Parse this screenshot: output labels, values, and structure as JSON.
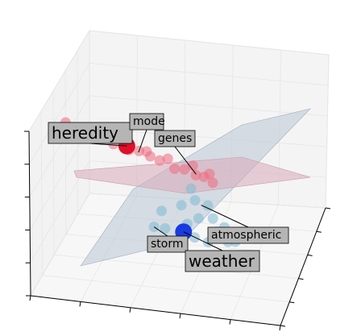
{
  "chart_data": {
    "type": "scatter",
    "projection": "3d",
    "grid": true,
    "tick_labels_shown": false,
    "title": "",
    "xlabel": "",
    "ylabel": "",
    "zlabel": "",
    "planes": [
      {
        "name": "",
        "color": "#b9c7d3"
      },
      {
        "name": "",
        "color": "#d9a9b9"
      }
    ],
    "series": [
      {
        "name": "",
        "color": "#ee6a7d",
        "points": [
          [
            -0.95,
            0.0,
            0.52
          ],
          [
            -0.8,
            0.02,
            0.5
          ],
          [
            -0.7,
            -0.02,
            0.48
          ],
          [
            -0.55,
            0.04,
            0.5
          ],
          [
            -0.48,
            -0.03,
            0.47
          ],
          [
            -0.42,
            0.05,
            0.51
          ],
          [
            -0.35,
            0.0,
            0.49
          ],
          [
            -0.3,
            -0.05,
            0.46
          ],
          [
            -0.25,
            0.04,
            0.52
          ],
          [
            -0.18,
            0.01,
            0.47
          ],
          [
            -0.12,
            -0.02,
            0.5
          ],
          [
            -0.05,
            0.05,
            0.48
          ],
          [
            0.02,
            0.0,
            0.45
          ],
          [
            0.08,
            -0.04,
            0.5
          ],
          [
            0.12,
            0.03,
            0.47
          ],
          [
            0.18,
            0.0,
            0.44
          ],
          [
            0.22,
            -0.02,
            0.49
          ],
          [
            0.26,
            0.04,
            0.46
          ]
        ]
      },
      {
        "name": "",
        "color": "#7fbad3",
        "points": [
          [
            0.1,
            0.12,
            0.35
          ],
          [
            0.15,
            0.2,
            0.3
          ],
          [
            0.05,
            0.25,
            0.2
          ],
          [
            0.2,
            0.3,
            0.15
          ],
          [
            0.25,
            0.18,
            0.25
          ],
          [
            0.3,
            0.22,
            0.1
          ],
          [
            0.12,
            0.35,
            0.05
          ],
          [
            0.35,
            0.3,
            0.0
          ],
          [
            0.4,
            0.25,
            0.05
          ],
          [
            0.45,
            0.35,
            -0.05
          ],
          [
            0.5,
            0.3,
            -0.1
          ],
          [
            -0.1,
            0.3,
            0.05
          ],
          [
            -0.05,
            0.4,
            -0.1
          ],
          [
            -0.15,
            0.35,
            -0.2
          ],
          [
            0.0,
            0.45,
            -0.25
          ],
          [
            0.3,
            0.4,
            -0.1
          ],
          [
            0.2,
            0.45,
            0.0
          ]
        ]
      }
    ],
    "highlighted": [
      {
        "word": "heredity",
        "point": [
          -0.45,
          0.0,
          0.5
        ],
        "color": "#e0102a"
      },
      {
        "word": "weather",
        "point": [
          0.1,
          0.4,
          -0.05
        ],
        "color": "#1a3ae0"
      }
    ],
    "annotations": [
      {
        "text": "heredity",
        "target": "heredity",
        "size": "large"
      },
      {
        "text": "mode",
        "target": [
          -0.35,
          0.02,
          0.49
        ],
        "size": "small"
      },
      {
        "text": "genes",
        "target": [
          0.12,
          0.02,
          0.47
        ],
        "size": "small"
      },
      {
        "text": "storm",
        "target": [
          -0.15,
          0.35,
          -0.2
        ],
        "size": "small"
      },
      {
        "text": "weather",
        "target": "weather",
        "size": "large"
      },
      {
        "text": "atmospheric",
        "target": [
          0.2,
          0.2,
          0.25
        ],
        "size": "small"
      }
    ]
  }
}
